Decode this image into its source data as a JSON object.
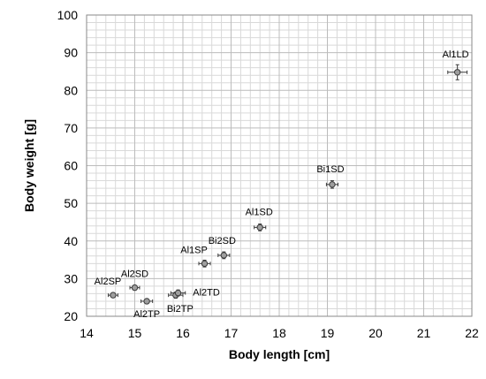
{
  "chart_data": {
    "type": "scatter",
    "title": "",
    "xlabel": "Body length [cm]",
    "ylabel": "Body weight [g]",
    "xlim": [
      14,
      22
    ],
    "ylim": [
      20,
      100
    ],
    "x_major_step": 1,
    "y_major_step": 10,
    "x_minor_step": 0.2,
    "y_minor_step": 2,
    "grid": true,
    "legend": "none",
    "x_ticks": [
      "14",
      "15",
      "16",
      "17",
      "18",
      "19",
      "20",
      "21",
      "22"
    ],
    "y_ticks": [
      "20",
      "30",
      "40",
      "50",
      "60",
      "70",
      "80",
      "90",
      "100"
    ],
    "points": [
      {
        "label": "Al2SP",
        "x": 14.55,
        "y": 25.6,
        "xerr": 0.1,
        "yerr": 0.6
      },
      {
        "label": "Al2SD",
        "x": 15.0,
        "y": 27.6,
        "xerr": 0.1,
        "yerr": 0.6
      },
      {
        "label": "Al2TP",
        "x": 15.25,
        "y": 24.0,
        "xerr": 0.12,
        "yerr": 0.5
      },
      {
        "label": "Bi2TP",
        "x": 15.85,
        "y": 25.6,
        "xerr": 0.15,
        "yerr": 0.8
      },
      {
        "label": "Al2TD",
        "x": 15.9,
        "y": 26.2,
        "xerr": 0.15,
        "yerr": 0.8
      },
      {
        "label": "Al1SP",
        "x": 16.45,
        "y": 34.0,
        "xerr": 0.12,
        "yerr": 0.9
      },
      {
        "label": "Bi2SD",
        "x": 16.85,
        "y": 36.2,
        "xerr": 0.12,
        "yerr": 0.9
      },
      {
        "label": "Al1SD",
        "x": 17.6,
        "y": 43.6,
        "xerr": 0.12,
        "yerr": 0.9
      },
      {
        "label": "Bi1SD",
        "x": 19.1,
        "y": 55.0,
        "xerr": 0.12,
        "yerr": 1.0
      },
      {
        "label": "Al1LD",
        "x": 21.7,
        "y": 84.8,
        "xerr": 0.2,
        "yerr": 2.0
      }
    ],
    "colors": {
      "marker_fill": "#9e9e9e",
      "marker_stroke": "#3a3a3a",
      "grid_major": "#bcbcbc",
      "grid_minor": "#d9d9d9",
      "error_bar": "#3a3a3a"
    }
  }
}
